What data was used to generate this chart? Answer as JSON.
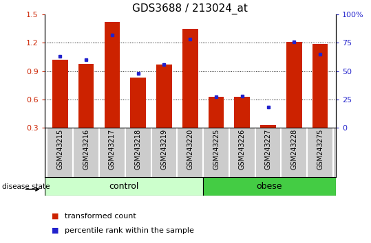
{
  "title": "GDS3688 / 213024_at",
  "samples": [
    "GSM243215",
    "GSM243216",
    "GSM243217",
    "GSM243218",
    "GSM243219",
    "GSM243220",
    "GSM243225",
    "GSM243226",
    "GSM243227",
    "GSM243228",
    "GSM243275"
  ],
  "transformed_counts": [
    1.02,
    0.98,
    1.42,
    0.83,
    0.97,
    1.35,
    0.63,
    0.63,
    0.33,
    1.21,
    1.19
  ],
  "percentile_ranks": [
    63,
    60,
    82,
    48,
    56,
    78,
    27,
    28,
    18,
    76,
    65
  ],
  "ylim_left": [
    0.3,
    1.5
  ],
  "ylim_right": [
    0,
    100
  ],
  "yticks_left": [
    0.3,
    0.6,
    0.9,
    1.2,
    1.5
  ],
  "yticks_right": [
    0,
    25,
    50,
    75,
    100
  ],
  "yticklabels_right": [
    "0",
    "25",
    "50",
    "75",
    "100%"
  ],
  "bar_color": "#cc2200",
  "dot_color": "#2222cc",
  "n_control": 6,
  "n_obese": 5,
  "control_label": "control",
  "obese_label": "obese",
  "disease_state_label": "disease state",
  "legend_transformed": "transformed count",
  "legend_percentile": "percentile rank within the sample",
  "control_color": "#ccffcc",
  "obese_color": "#44cc44",
  "sample_band_color": "#cccccc",
  "tick_color_left": "#cc2200",
  "tick_color_right": "#2222cc",
  "baseline": 0.3,
  "bar_width": 0.6,
  "dotted_lines": [
    0.6,
    0.9,
    1.2
  ],
  "title_fontsize": 11,
  "tick_fontsize": 8,
  "sample_fontsize": 7,
  "legend_fontsize": 8
}
